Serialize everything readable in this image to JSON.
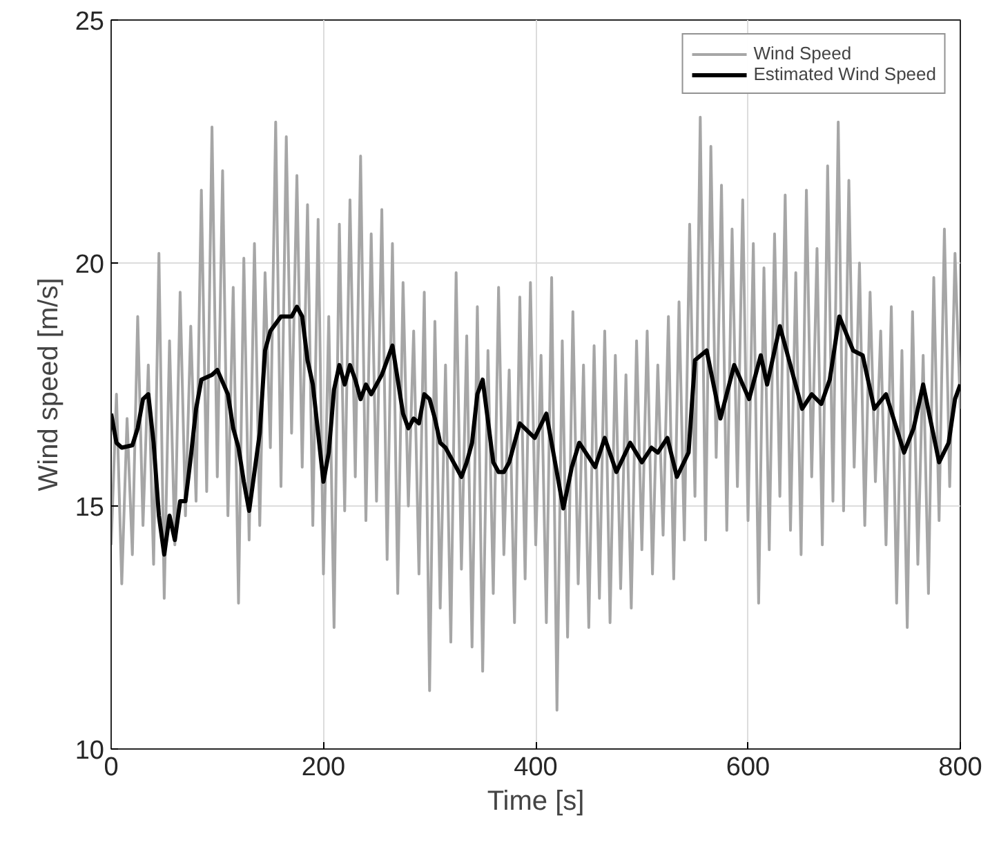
{
  "chart_data": {
    "type": "line",
    "xlabel": "Time [s]",
    "ylabel": "Wind speed [m/s]",
    "xlim": [
      0,
      800
    ],
    "ylim": [
      10,
      25
    ],
    "xticks": [
      0,
      200,
      400,
      600,
      800
    ],
    "yticks": [
      10,
      15,
      20,
      25
    ],
    "grid": true,
    "legend": "top right",
    "marker": "none",
    "line_style": "solid",
    "series": [
      {
        "name": "Wind Speed",
        "color": "#a6a6a6",
        "x": [
          0,
          5,
          10,
          15,
          20,
          25,
          30,
          35,
          40,
          45,
          50,
          55,
          60,
          65,
          70,
          75,
          80,
          85,
          90,
          95,
          100,
          105,
          110,
          115,
          120,
          125,
          130,
          135,
          140,
          145,
          150,
          155,
          160,
          165,
          170,
          175,
          180,
          185,
          190,
          195,
          200,
          205,
          210,
          215,
          220,
          225,
          230,
          235,
          240,
          245,
          250,
          255,
          260,
          265,
          270,
          275,
          280,
          285,
          290,
          295,
          300,
          305,
          310,
          315,
          320,
          325,
          330,
          335,
          340,
          345,
          350,
          355,
          360,
          365,
          370,
          375,
          380,
          385,
          390,
          395,
          400,
          405,
          410,
          415,
          420,
          425,
          430,
          435,
          440,
          445,
          450,
          455,
          460,
          465,
          470,
          475,
          480,
          485,
          490,
          495,
          500,
          505,
          510,
          515,
          520,
          525,
          530,
          535,
          540,
          545,
          550,
          555,
          560,
          565,
          570,
          575,
          580,
          585,
          590,
          595,
          600,
          605,
          610,
          615,
          620,
          625,
          630,
          635,
          640,
          645,
          650,
          655,
          660,
          665,
          670,
          675,
          680,
          685,
          690,
          695,
          700,
          705,
          710,
          715,
          720,
          725,
          730,
          735,
          740,
          745,
          750,
          755,
          760,
          765,
          770,
          775,
          780,
          785,
          790,
          795,
          800
        ],
        "values": [
          14.2,
          17.3,
          13.4,
          16.8,
          14.0,
          18.9,
          14.6,
          17.9,
          13.8,
          20.2,
          13.1,
          18.4,
          14.2,
          19.4,
          14.8,
          18.7,
          15.1,
          21.5,
          15.3,
          22.8,
          15.6,
          21.9,
          14.8,
          19.5,
          13.0,
          20.1,
          14.3,
          20.4,
          14.6,
          19.8,
          16.2,
          22.9,
          15.4,
          22.6,
          16.5,
          21.8,
          15.8,
          21.2,
          14.6,
          20.9,
          13.6,
          18.9,
          12.5,
          20.8,
          14.9,
          21.3,
          15.6,
          22.2,
          14.7,
          20.6,
          15.1,
          21.1,
          13.9,
          20.4,
          13.2,
          19.6,
          15.0,
          18.6,
          13.6,
          19.4,
          11.2,
          18.8,
          12.9,
          17.9,
          12.2,
          19.8,
          13.7,
          18.5,
          12.1,
          19.1,
          11.6,
          18.2,
          13.2,
          19.5,
          14.0,
          17.8,
          12.6,
          19.3,
          13.5,
          19.6,
          14.2,
          18.1,
          12.6,
          19.7,
          10.8,
          18.4,
          12.3,
          19.0,
          13.4,
          17.9,
          12.5,
          18.3,
          13.1,
          18.6,
          12.6,
          18.1,
          13.3,
          17.7,
          12.9,
          18.4,
          14.1,
          18.6,
          13.6,
          17.9,
          14.4,
          18.9,
          13.5,
          19.2,
          14.3,
          20.8,
          15.2,
          23.0,
          14.3,
          22.4,
          16.0,
          21.6,
          14.5,
          20.7,
          15.4,
          21.3,
          14.7,
          20.4,
          13.0,
          19.9,
          14.1,
          20.6,
          15.2,
          21.4,
          14.5,
          19.8,
          14.0,
          21.5,
          15.6,
          20.3,
          14.2,
          22.0,
          15.1,
          22.9,
          14.9,
          21.7,
          15.8,
          20.0,
          14.6,
          19.4,
          15.5,
          18.6,
          14.2,
          19.1,
          13.0,
          18.2,
          12.5,
          19.0,
          13.8,
          18.1,
          13.2,
          19.7,
          14.7,
          20.7,
          15.4,
          20.2,
          17.0
        ]
      },
      {
        "name": "Estimated Wind Speed",
        "color": "#000000",
        "x": [
          0,
          5,
          10,
          20,
          25,
          30,
          35,
          40,
          45,
          50,
          55,
          60,
          65,
          70,
          75,
          80,
          85,
          95,
          100,
          110,
          115,
          120,
          125,
          130,
          135,
          140,
          145,
          150,
          160,
          170,
          175,
          180,
          185,
          190,
          195,
          200,
          205,
          210,
          215,
          220,
          225,
          230,
          235,
          240,
          245,
          255,
          265,
          270,
          275,
          280,
          285,
          290,
          295,
          300,
          305,
          310,
          315,
          320,
          325,
          330,
          335,
          340,
          345,
          350,
          360,
          365,
          370,
          375,
          380,
          385,
          399,
          410,
          426,
          434,
          441,
          456,
          465,
          476,
          489,
          500,
          509,
          515,
          524,
          533,
          544,
          550,
          561,
          574,
          587,
          601,
          612,
          618,
          630,
          651,
          660,
          669,
          677,
          686,
          699,
          708,
          719,
          730,
          747,
          756,
          765,
          780,
          789,
          795,
          800
        ],
        "values": [
          16.9,
          16.3,
          16.2,
          16.25,
          16.6,
          17.2,
          17.3,
          16.3,
          14.8,
          14.0,
          14.8,
          14.3,
          15.1,
          15.1,
          16.0,
          17.0,
          17.6,
          17.7,
          17.8,
          17.3,
          16.6,
          16.2,
          15.5,
          14.9,
          15.7,
          16.5,
          18.2,
          18.6,
          18.9,
          18.9,
          19.1,
          18.9,
          18.0,
          17.5,
          16.5,
          15.5,
          16.1,
          17.4,
          17.9,
          17.5,
          17.9,
          17.6,
          17.2,
          17.5,
          17.3,
          17.7,
          18.3,
          17.6,
          16.9,
          16.6,
          16.8,
          16.7,
          17.3,
          17.2,
          16.8,
          16.3,
          16.2,
          16.0,
          15.8,
          15.6,
          15.9,
          16.3,
          17.3,
          17.6,
          15.9,
          15.7,
          15.7,
          15.9,
          16.3,
          16.7,
          16.4,
          16.9,
          14.95,
          15.8,
          16.3,
          15.8,
          16.4,
          15.7,
          16.3,
          15.9,
          16.2,
          16.1,
          16.4,
          15.6,
          16.1,
          18.0,
          18.2,
          16.8,
          17.9,
          17.2,
          18.1,
          17.5,
          18.7,
          17.0,
          17.3,
          17.1,
          17.6,
          18.9,
          18.2,
          18.1,
          17.0,
          17.3,
          16.1,
          16.6,
          17.5,
          15.9,
          16.3,
          17.2,
          17.5
        ]
      }
    ]
  }
}
